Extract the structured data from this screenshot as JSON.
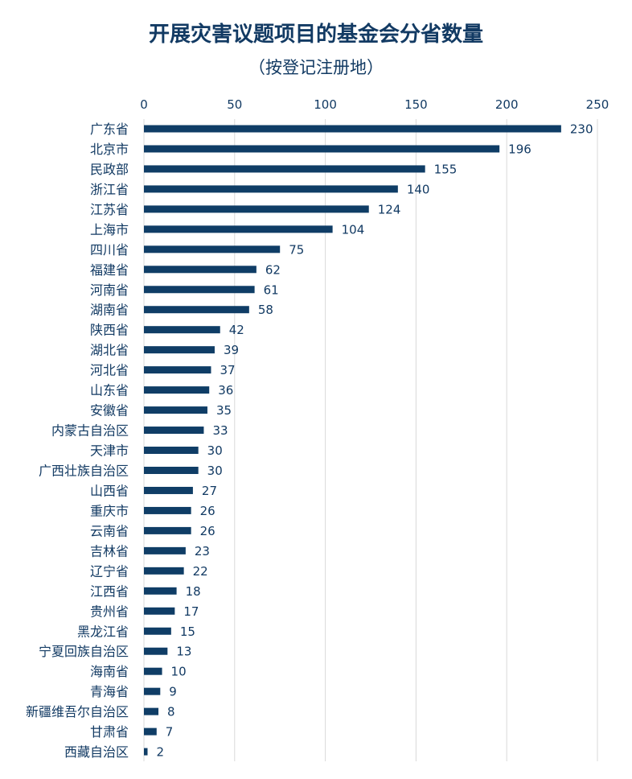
{
  "chart_data": {
    "type": "bar",
    "orientation": "horizontal",
    "title": "开展灾害议题项目的基金会分省数量",
    "subtitle": "（按登记注册地）",
    "xlim": [
      0,
      250
    ],
    "xticks": [
      0,
      50,
      100,
      150,
      200,
      250
    ],
    "x_axis_position": "top",
    "grid": true,
    "bar_color": "#0f3d66",
    "data_labels": true,
    "categories": [
      "广东省",
      "北京市",
      "民政部",
      "浙江省",
      "江苏省",
      "上海市",
      "四川省",
      "福建省",
      "河南省",
      "湖南省",
      "陕西省",
      "湖北省",
      "河北省",
      "山东省",
      "安徽省",
      "内蒙古自治区",
      "天津市",
      "广西壮族自治区",
      "山西省",
      "重庆市",
      "云南省",
      "吉林省",
      "辽宁省",
      "江西省",
      "贵州省",
      "黑龙江省",
      "宁夏回族自治区",
      "海南省",
      "青海省",
      "新疆维吾尔自治区",
      "甘肃省",
      "西藏自治区"
    ],
    "values": [
      230,
      196,
      155,
      140,
      124,
      104,
      75,
      62,
      61,
      58,
      42,
      39,
      37,
      36,
      35,
      33,
      30,
      30,
      27,
      26,
      26,
      23,
      22,
      18,
      17,
      15,
      13,
      10,
      9,
      8,
      7,
      2
    ]
  }
}
